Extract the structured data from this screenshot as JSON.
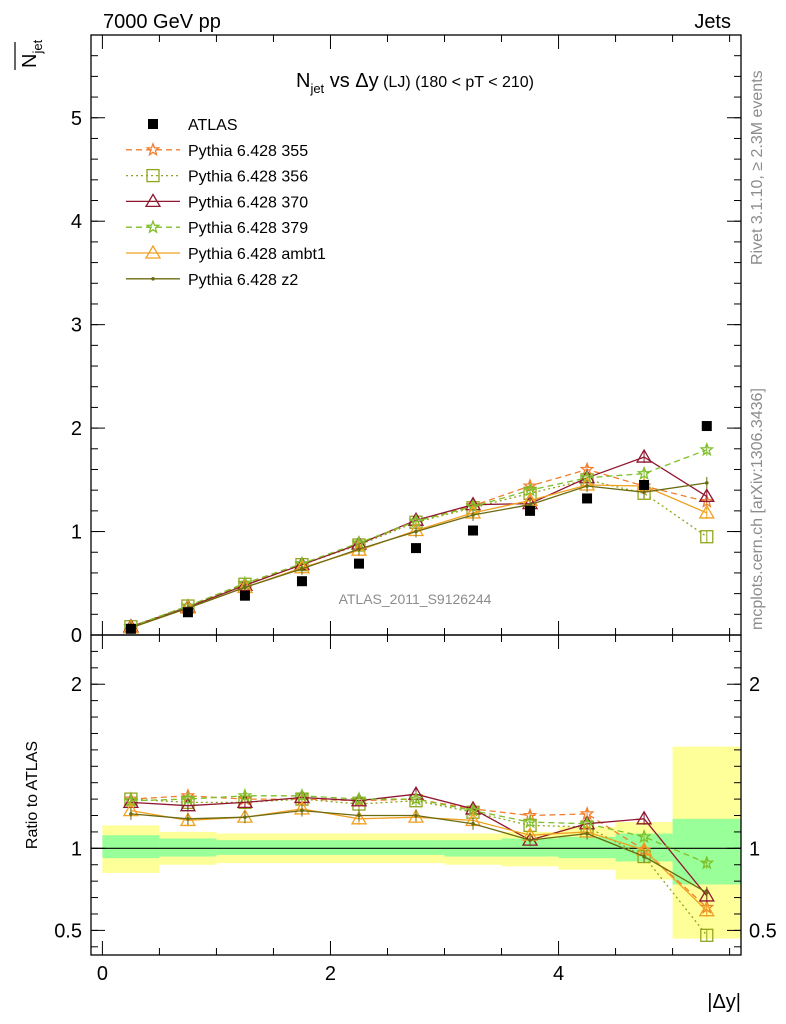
{
  "header": {
    "left": "7000 GeV pp",
    "right": "Jets"
  },
  "side_text": {
    "rivet": "Rivet 3.1.10, ≥ 2.3M events",
    "mcplots": "mcplots.cern.ch [arXiv:1306.3436]"
  },
  "watermark": "ATLAS_2011_S9126244",
  "title": {
    "main": "N",
    "sub": "jet",
    "vs": " vs Δy",
    "lj": " (LJ)",
    "range": " (180 < pT < 210)"
  },
  "ylabel_top": {
    "n": "N",
    "sub": "jet"
  },
  "ylabel_bottom": "Ratio to ATLAS",
  "xlabel": "|Δy|",
  "colors": {
    "p355": "#f07f2f",
    "p356": "#8fa61c",
    "p370": "#8f1730",
    "p379": "#7fbf2a",
    "ambt1": "#f0a020",
    "z2": "#6b6b12",
    "band_inner": "#99ff99",
    "band_outer": "#ffff99"
  },
  "chart_data": [
    {
      "type": "scatter",
      "panel": "main",
      "xlim": [
        -0.1,
        5.6
      ],
      "ylim": [
        0,
        5.8
      ],
      "xticks": [
        "0",
        "2",
        "4"
      ],
      "yticks": [
        "0",
        "1",
        "2",
        "3",
        "4",
        "5"
      ],
      "x": [
        0.25,
        0.75,
        1.25,
        1.75,
        2.25,
        2.75,
        3.25,
        3.75,
        4.25,
        4.75,
        5.3
      ],
      "legend_position": "top-left",
      "series": [
        {
          "key": "atlas",
          "name": "ATLAS",
          "values": [
            0.06,
            0.22,
            0.38,
            0.52,
            0.69,
            0.84,
            1.01,
            1.2,
            1.32,
            1.45,
            2.02
          ]
        },
        {
          "key": "p355",
          "name": "Pythia 6.428 355",
          "values": [
            0.08,
            0.28,
            0.49,
            0.68,
            0.88,
            1.1,
            1.25,
            1.44,
            1.6,
            1.44,
            1.29
          ]
        },
        {
          "key": "p356",
          "name": "Pythia 6.428 356",
          "values": [
            0.08,
            0.28,
            0.49,
            0.68,
            0.87,
            1.09,
            1.23,
            1.37,
            1.5,
            1.37,
            0.95
          ]
        },
        {
          "key": "p370",
          "name": "Pythia 6.428 370",
          "values": [
            0.08,
            0.27,
            0.48,
            0.68,
            0.88,
            1.11,
            1.26,
            1.27,
            1.52,
            1.72,
            1.34
          ]
        },
        {
          "key": "p379",
          "name": "Pythia 6.428 379",
          "values": [
            0.08,
            0.28,
            0.5,
            0.69,
            0.89,
            1.1,
            1.24,
            1.4,
            1.52,
            1.56,
            1.79
          ]
        },
        {
          "key": "ambt1",
          "name": "Pythia 6.428 ambt1",
          "values": [
            0.07,
            0.26,
            0.46,
            0.65,
            0.82,
            1.01,
            1.18,
            1.3,
            1.45,
            1.44,
            1.18
          ]
        },
        {
          "key": "z2",
          "name": "Pythia 6.428 z2",
          "values": [
            0.07,
            0.26,
            0.46,
            0.64,
            0.83,
            1.0,
            1.16,
            1.26,
            1.44,
            1.38,
            1.47
          ]
        }
      ]
    },
    {
      "type": "scatter",
      "panel": "ratio",
      "xlim": [
        -0.1,
        5.6
      ],
      "ylim": [
        0.35,
        2.3
      ],
      "xticks": [
        "0",
        "2",
        "4"
      ],
      "yticks": [
        "0.5",
        "1",
        "2"
      ],
      "bins": [
        [
          0,
          0.5
        ],
        [
          0.5,
          1.0
        ],
        [
          1.0,
          1.5
        ],
        [
          1.5,
          2.0
        ],
        [
          2.0,
          2.5
        ],
        [
          2.5,
          3.0
        ],
        [
          3.0,
          3.5
        ],
        [
          3.5,
          4.0
        ],
        [
          4.0,
          4.5
        ],
        [
          4.5,
          5.0
        ],
        [
          5.0,
          5.6
        ]
      ],
      "band_inner": [
        [
          0.94,
          1.08
        ],
        [
          0.95,
          1.06
        ],
        [
          0.96,
          1.05
        ],
        [
          0.96,
          1.05
        ],
        [
          0.96,
          1.05
        ],
        [
          0.96,
          1.05
        ],
        [
          0.95,
          1.05
        ],
        [
          0.95,
          1.06
        ],
        [
          0.94,
          1.07
        ],
        [
          0.92,
          1.09
        ],
        [
          0.78,
          1.18
        ]
      ],
      "band_outer": [
        [
          0.85,
          1.14
        ],
        [
          0.9,
          1.1
        ],
        [
          0.91,
          1.09
        ],
        [
          0.91,
          1.09
        ],
        [
          0.91,
          1.09
        ],
        [
          0.91,
          1.09
        ],
        [
          0.9,
          1.09
        ],
        [
          0.89,
          1.1
        ],
        [
          0.87,
          1.13
        ],
        [
          0.81,
          1.16
        ],
        [
          0.45,
          1.62
        ]
      ],
      "x": [
        0.25,
        0.75,
        1.25,
        1.75,
        2.25,
        2.75,
        3.25,
        3.75,
        4.25,
        4.75,
        5.3
      ],
      "series": [
        {
          "key": "p355",
          "values": [
            1.3,
            1.32,
            1.3,
            1.3,
            1.29,
            1.3,
            1.24,
            1.2,
            1.21,
            0.99,
            0.64
          ]
        },
        {
          "key": "p356",
          "values": [
            1.3,
            1.28,
            1.28,
            1.3,
            1.27,
            1.29,
            1.22,
            1.14,
            1.13,
            0.95,
            0.47
          ]
        },
        {
          "key": "p370",
          "values": [
            1.28,
            1.26,
            1.28,
            1.31,
            1.29,
            1.33,
            1.24,
            1.05,
            1.15,
            1.18,
            0.71
          ]
        },
        {
          "key": "p379",
          "values": [
            1.29,
            1.3,
            1.32,
            1.32,
            1.3,
            1.3,
            1.23,
            1.16,
            1.15,
            1.07,
            0.91
          ]
        },
        {
          "key": "ambt1",
          "values": [
            1.23,
            1.17,
            1.19,
            1.24,
            1.18,
            1.19,
            1.17,
            1.08,
            1.1,
            0.99,
            0.62
          ]
        },
        {
          "key": "z2",
          "values": [
            1.21,
            1.18,
            1.19,
            1.23,
            1.2,
            1.2,
            1.15,
            1.05,
            1.09,
            0.95,
            0.73
          ]
        }
      ]
    }
  ]
}
